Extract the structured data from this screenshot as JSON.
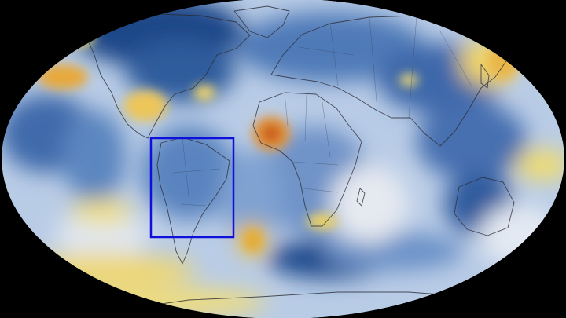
{
  "map": {
    "projection": "robinson",
    "background_color": "#000000",
    "palette": {
      "deep_cold": "#173e7c",
      "cold": "#4f7ab8",
      "cool": "#a8c0df",
      "neutral": "#e9ecf2",
      "warm": "#f2e27a",
      "hot": "#e7a93a",
      "very_hot": "#c7551c"
    },
    "highlight_box": {
      "region": "South America",
      "color": "#1010dd"
    }
  }
}
